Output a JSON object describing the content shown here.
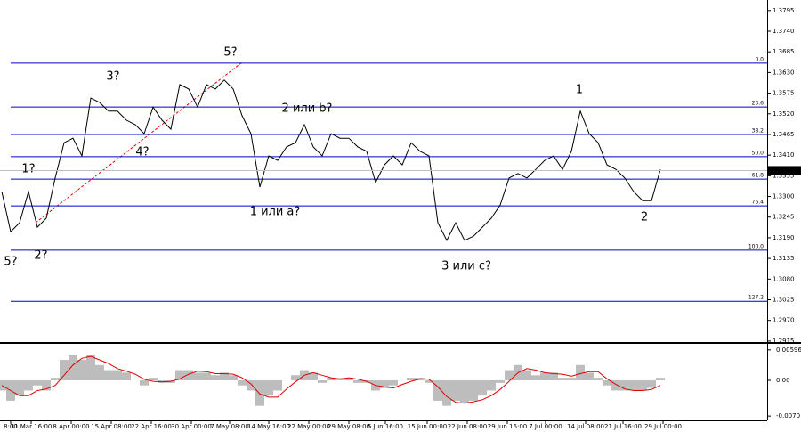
{
  "chart_data": [
    {
      "type": "line",
      "color": "#000000",
      "x": [
        0,
        1,
        2,
        3,
        4,
        5,
        6,
        7,
        8,
        9,
        10,
        11,
        12,
        13,
        14,
        15,
        16,
        17,
        18,
        19,
        20,
        21,
        22,
        23,
        24,
        25,
        26,
        27,
        28,
        29,
        30,
        31,
        32,
        33,
        34,
        35,
        36,
        37,
        38,
        39,
        40,
        41,
        42,
        43,
        44,
        45,
        46,
        47,
        48,
        49,
        50,
        51,
        52,
        53,
        54,
        55,
        56,
        57,
        58,
        59,
        60,
        61,
        62,
        63,
        64,
        65,
        66,
        67,
        68,
        69,
        70,
        71,
        72,
        73,
        74
      ],
      "values": [
        1.3313,
        1.3206,
        1.323,
        1.3313,
        1.3218,
        1.3242,
        1.3349,
        1.3443,
        1.3455,
        1.3408,
        1.3562,
        1.355,
        1.3527,
        1.3527,
        1.3503,
        1.3491,
        1.3467,
        1.3538,
        1.3503,
        1.3479,
        1.3598,
        1.3586,
        1.3538,
        1.3598,
        1.3586,
        1.361,
        1.3586,
        1.3515,
        1.3467,
        1.3325,
        1.3408,
        1.3396,
        1.3432,
        1.3443,
        1.3491,
        1.3432,
        1.3408,
        1.3467,
        1.3455,
        1.3455,
        1.3432,
        1.342,
        1.3337,
        1.3384,
        1.3408,
        1.3384,
        1.3443,
        1.342,
        1.3408,
        1.323,
        1.3183,
        1.323,
        1.3183,
        1.3194,
        1.3218,
        1.3242,
        1.3277,
        1.3349,
        1.3361,
        1.3349,
        1.3372,
        1.3396,
        1.3408,
        1.3372,
        1.342,
        1.3527,
        1.3467,
        1.3443,
        1.3384,
        1.3372,
        1.3349,
        1.3313,
        1.3289,
        1.3289,
        1.3372
      ],
      "xlim": [
        -0.2,
        86
      ],
      "ylim": [
        1.291,
        1.3823
      ],
      "yticks": [
        1.3795,
        {
          "value": 1.374,
          "label": "1.3740"
        },
        1.3685,
        {
          "value": 1.363,
          "label": "1.3630"
        },
        1.3575,
        {
          "value": 1.352,
          "label": "1.3520"
        },
        1.3465,
        {
          "value": 1.341,
          "label": "1.3410"
        },
        1.3355,
        {
          "value": 1.33,
          "label": "1.3300"
        },
        1.3245,
        {
          "value": 1.319,
          "label": "1.3190"
        },
        1.3135,
        {
          "value": 1.308,
          "label": "1.3080"
        },
        1.3025,
        {
          "value": 1.297,
          "label": "1.2970"
        },
        1.2915
      ],
      "fib_color": "#0000cc",
      "fib_levels": [
        {
          "value": 1.3655,
          "label": "0.0"
        },
        {
          "value": 1.3538,
          "label": "23.6"
        },
        {
          "value": 1.3465,
          "label": "38.2"
        },
        {
          "value": 1.3406,
          "label": "50.0"
        },
        {
          "value": 1.3346,
          "label": "61.8"
        },
        {
          "value": 1.3275,
          "label": "76.4"
        },
        {
          "value": 1.3157,
          "label": "100.0"
        },
        {
          "value": 1.3021,
          "label": "127.2"
        }
      ],
      "last_price": 1.3369,
      "annotation_color": "#e00000",
      "annotations": [
        "5?",
        "2?",
        "1?",
        "3?",
        "4?",
        "5?",
        "1 или a?",
        "2 или b?",
        "3 или c?",
        "1",
        "2"
      ]
    },
    {
      "type": "macd",
      "hist_color": "#bdbdbd",
      "signal_color": "#e00000",
      "x": [
        0,
        1,
        2,
        3,
        4,
        5,
        6,
        7,
        8,
        9,
        10,
        11,
        12,
        13,
        14,
        15,
        16,
        17,
        18,
        19,
        20,
        21,
        22,
        23,
        24,
        25,
        26,
        27,
        28,
        29,
        30,
        31,
        32,
        33,
        34,
        35,
        36,
        37,
        38,
        39,
        40,
        41,
        42,
        43,
        44,
        45,
        46,
        47,
        48,
        49,
        50,
        51,
        52,
        53,
        54,
        55,
        56,
        57,
        58,
        59,
        60,
        61,
        62,
        63,
        64,
        65,
        66,
        67,
        68,
        69,
        70,
        71,
        72,
        73,
        74
      ],
      "values": [
        -0.002,
        -0.004,
        -0.003,
        -0.002,
        -0.001,
        -0.002,
        0.0005,
        0.004,
        0.005,
        0.004,
        0.005,
        0.003,
        0.002,
        0.002,
        0.0015,
        0,
        -0.001,
        0.0005,
        -0.0005,
        -0.0005,
        0.002,
        0.002,
        0.0015,
        0.0015,
        0.001,
        0.0015,
        0.001,
        -0.001,
        -0.002,
        -0.005,
        -0.003,
        -0.002,
        0,
        0.001,
        0.002,
        0.0015,
        -0.0005,
        0.0005,
        0.0005,
        0.0005,
        -0.0005,
        -0.0005,
        -0.002,
        -0.0015,
        -0.001,
        0,
        0.0005,
        0.0005,
        -0.0005,
        -0.004,
        -0.005,
        -0.004,
        -0.0045,
        -0.004,
        -0.003,
        -0.002,
        -0.0005,
        0.002,
        0.003,
        0.002,
        0.001,
        0.0015,
        0.0015,
        0.0005,
        0.0005,
        0.003,
        0.0015,
        0.0005,
        -0.001,
        -0.002,
        -0.002,
        -0.002,
        -0.002,
        -0.0015,
        0.0005
      ],
      "signal": [
        -0.001,
        -0.002,
        -0.003,
        -0.003,
        -0.002,
        -0.0017,
        -0.001,
        0.001,
        0.003,
        0.0043,
        0.0047,
        0.004,
        0.0033,
        0.0023,
        0.0018,
        0.0012,
        0.0002,
        -0.0002,
        -0.0003,
        -0.0002,
        0.0003,
        0.0012,
        0.0018,
        0.0017,
        0.0013,
        0.0013,
        0.0012,
        0.0005,
        -0.0007,
        -0.0027,
        -0.0033,
        -0.0033,
        -0.0017,
        -0.0003,
        0.001,
        0.0015,
        0.001,
        0.0005,
        0.0002,
        0.0005,
        0.0002,
        -0.0002,
        -0.001,
        -0.0013,
        -0.0015,
        -0.0008,
        -0.0002,
        0.0003,
        0.0002,
        -0.0013,
        -0.0032,
        -0.0043,
        -0.0045,
        -0.0042,
        -0.0038,
        -0.003,
        -0.0018,
        -0.0002,
        0.0015,
        0.0023,
        0.002,
        0.0015,
        0.0013,
        0.0012,
        0.0008,
        0.0013,
        0.0017,
        0.0017,
        0.0003,
        -0.0008,
        -0.0017,
        -0.002,
        -0.002,
        -0.0018,
        -0.001
      ],
      "xlim": [
        -0.2,
        86
      ],
      "ylim": [
        -0.0075,
        0.0068
      ],
      "yticks": [
        0.00596,
        {
          "value": 0,
          "label": "0.00"
        },
        {
          "value": -0.007,
          "label": "-0.0070"
        }
      ],
      "xticks": [
        {
          "value": 1,
          "label": "8:00"
        },
        {
          "value": 3.3,
          "label": "31 Mar 16:00"
        },
        {
          "value": 7.8,
          "label": "8 Apr 00:00"
        },
        {
          "value": 12.3,
          "label": "15 Apr 08:00"
        },
        {
          "value": 16.8,
          "label": "22 Apr 16:00"
        },
        {
          "value": 21.3,
          "label": "30 Apr 00:00"
        },
        {
          "value": 25.6,
          "label": "7 May 08:00"
        },
        {
          "value": 30,
          "label": "14 May 16:00"
        },
        {
          "value": 34.5,
          "label": "22 May 00:00"
        },
        {
          "value": 39,
          "label": "29 May 08:00"
        },
        {
          "value": 43.1,
          "label": "5 Jun 16:00"
        },
        {
          "value": 47.8,
          "label": "15 Jun 00:00"
        },
        {
          "value": 52.3,
          "label": "22 Jun 08:00"
        },
        {
          "value": 56.8,
          "label": "29 Jun 16:00"
        },
        {
          "value": 61.1,
          "label": "7 Jul 00:00"
        },
        {
          "value": 65.6,
          "label": "14 Jul 08:00"
        },
        {
          "value": 69.8,
          "label": "21 Jul 16:00"
        },
        {
          "value": 74.3,
          "label": "29 Jul 00:00"
        }
      ]
    }
  ]
}
